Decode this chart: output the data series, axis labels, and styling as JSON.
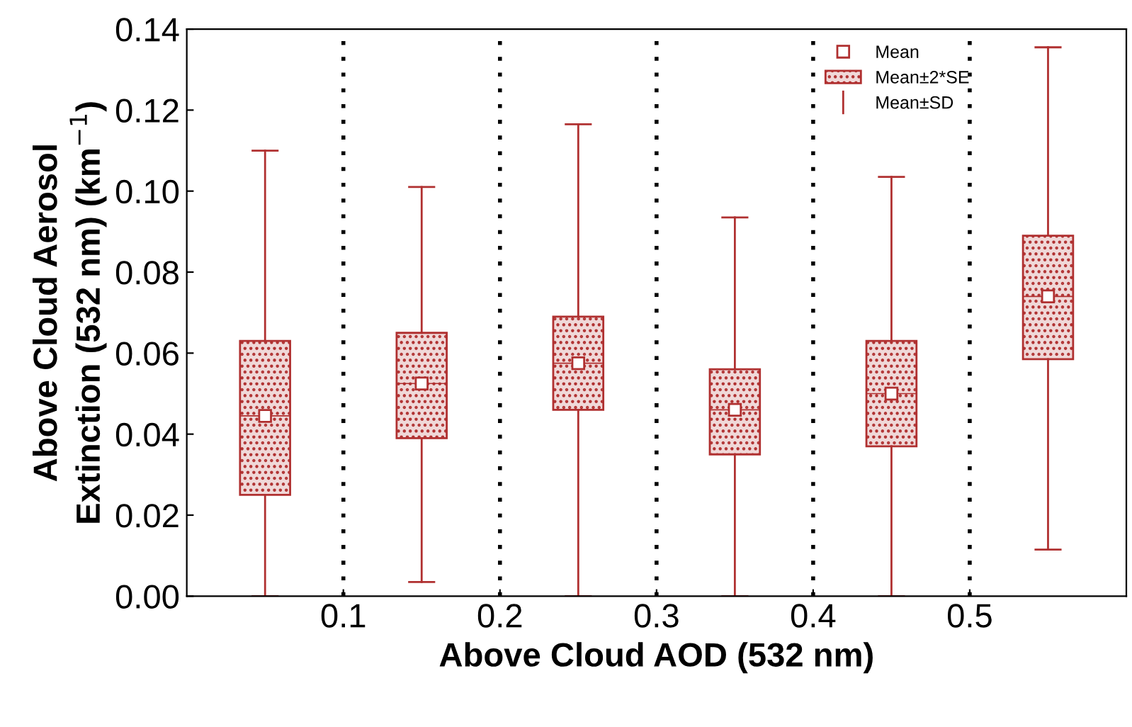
{
  "chart_data": {
    "type": "box",
    "xlabel": "Above Cloud AOD (532 nm)",
    "ylabel": "Above Cloud Aerosol\nExtinction (532 nm) (km$^{−1}$)",
    "x": [
      0.05,
      0.15,
      0.25,
      0.35,
      0.45,
      0.55
    ],
    "boxes": [
      {
        "low": 0.0,
        "q1": 0.025,
        "median": 0.0445,
        "q3": 0.063,
        "high": 0.11,
        "mean": 0.0445
      },
      {
        "low": 0.0035,
        "q1": 0.039,
        "median": 0.0525,
        "q3": 0.065,
        "high": 0.101,
        "mean": 0.0525
      },
      {
        "low": 0.0,
        "q1": 0.046,
        "median": 0.0575,
        "q3": 0.069,
        "high": 0.1165,
        "mean": 0.0575
      },
      {
        "low": 0.0,
        "q1": 0.035,
        "median": 0.046,
        "q3": 0.056,
        "high": 0.0935,
        "mean": 0.046
      },
      {
        "low": 0.0,
        "q1": 0.037,
        "median": 0.05,
        "q3": 0.063,
        "high": 0.1035,
        "mean": 0.05
      },
      {
        "low": 0.0115,
        "q1": 0.0585,
        "median": 0.074,
        "q3": 0.089,
        "high": 0.1355,
        "mean": 0.074
      }
    ],
    "color": "#b03030",
    "xlim": [
      0,
      0.6
    ],
    "xticks": [
      0.1,
      0.2,
      0.3,
      0.4,
      0.5
    ],
    "ylim": [
      0,
      0.14
    ],
    "yticks": [
      {
        "value": 0,
        "label": "0.00"
      },
      {
        "value": 0.02,
        "label": "0.02"
      },
      {
        "value": 0.04,
        "label": "0.04"
      },
      {
        "value": 0.06,
        "label": "0.06"
      },
      {
        "value": 0.08,
        "label": "0.08"
      },
      {
        "value": 0.1,
        "label": "0.10"
      },
      {
        "value": 0.12,
        "label": "0.12"
      },
      {
        "value": 0.14,
        "label": "0.14"
      }
    ],
    "grid": "x",
    "line_style": "dotted",
    "annotations": [
      "Mean",
      "Mean±2*SE",
      "Mean±SD"
    ]
  }
}
